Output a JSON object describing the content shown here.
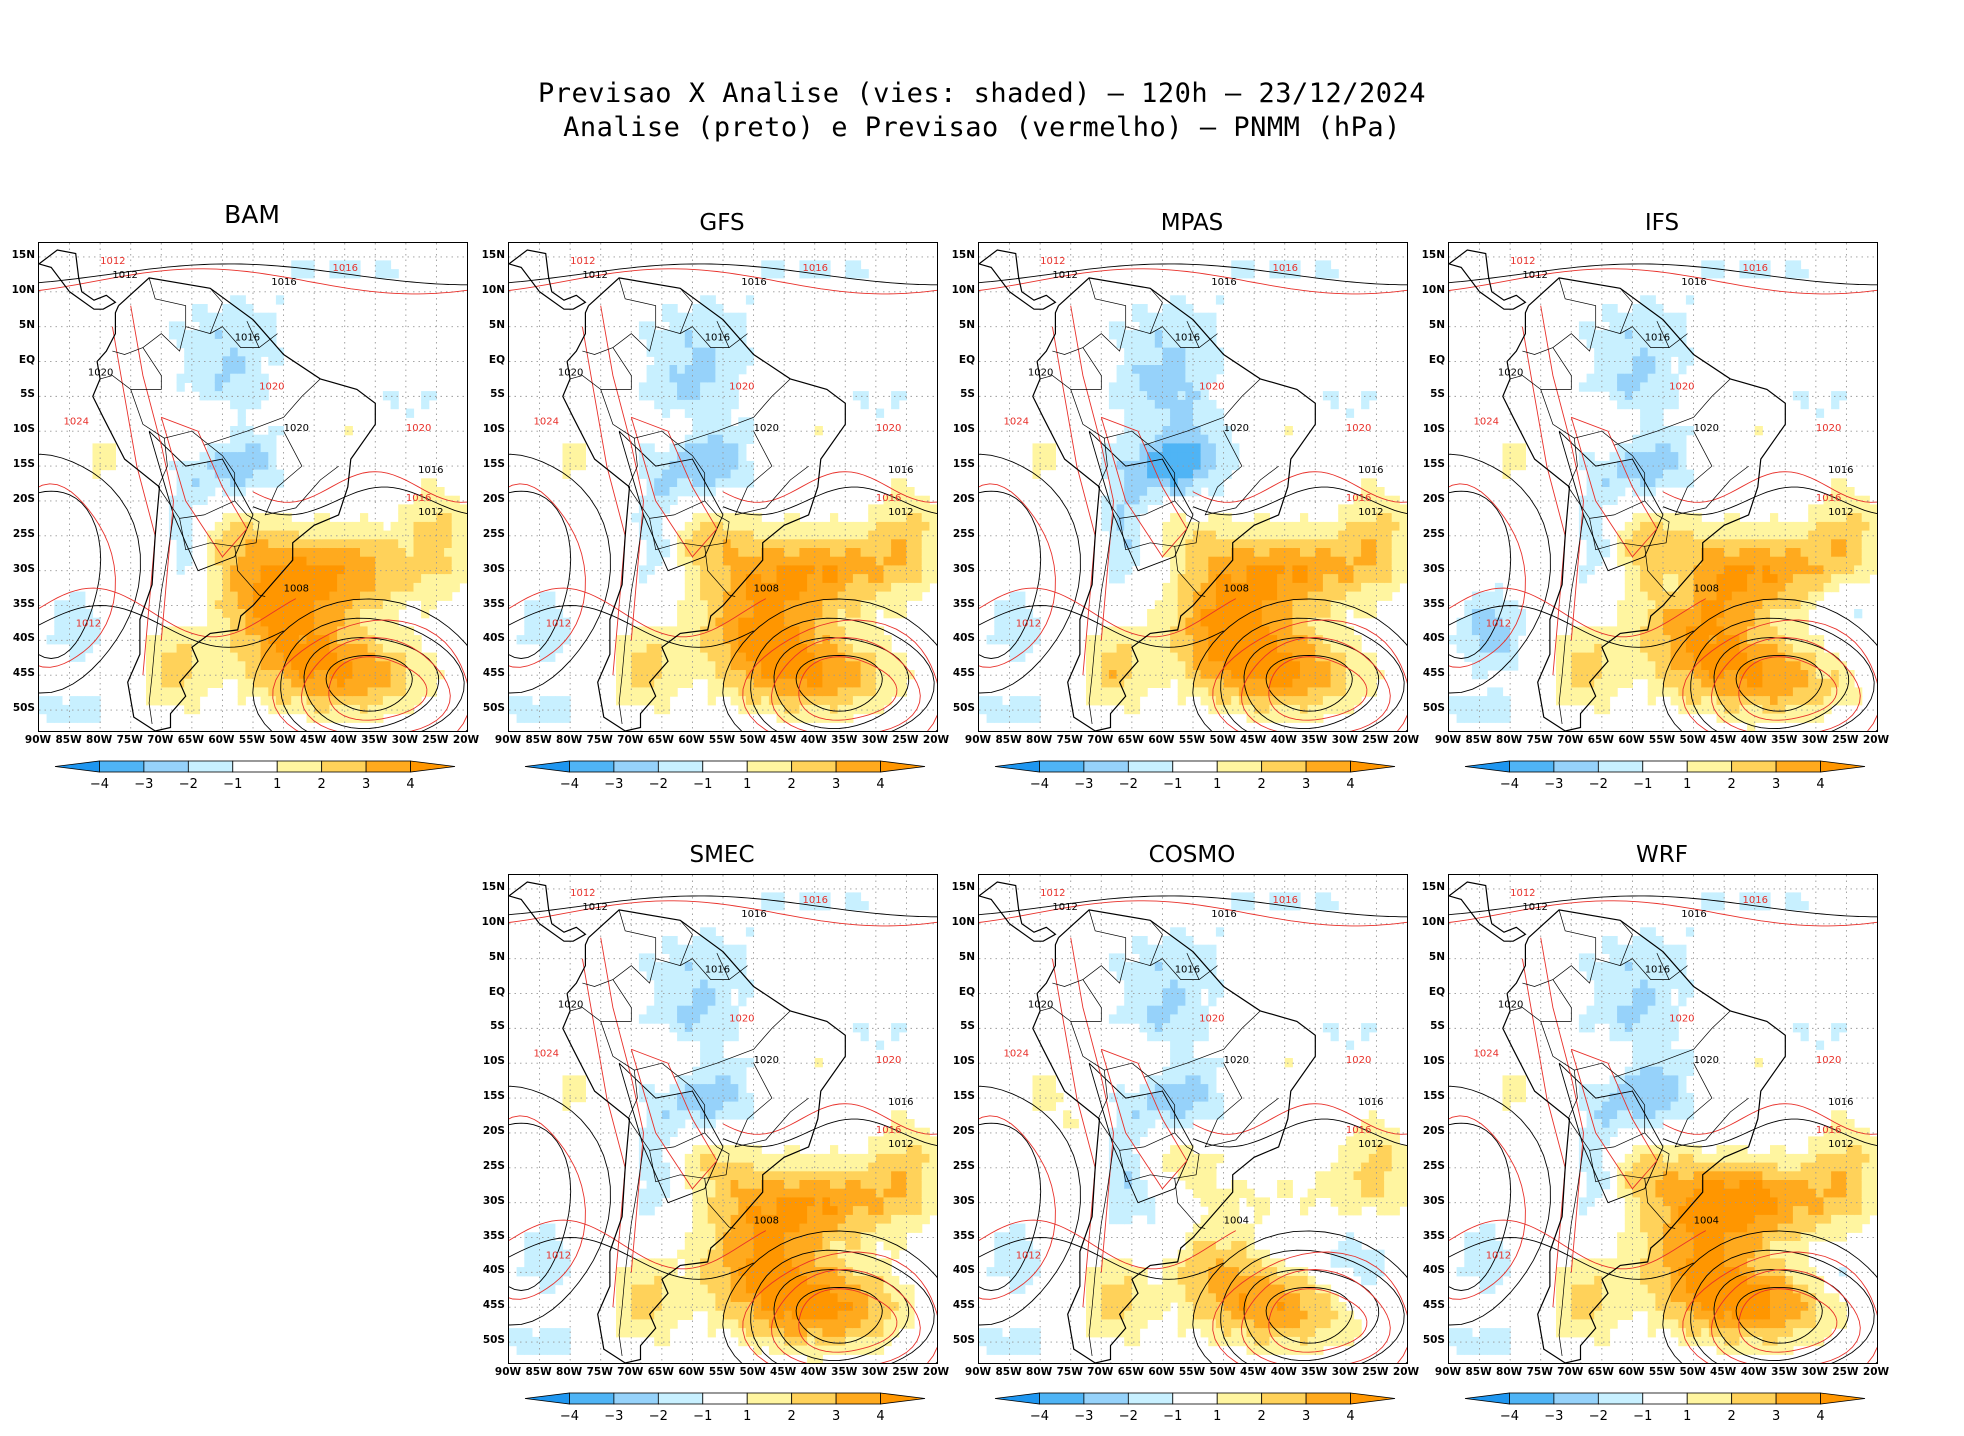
{
  "title_line1": "Previsao X Analise (vies: shaded) — 120h — 23/12/2024",
  "title_line2": "Analise (preto) e Previsao (vermelho) — PNMM (hPa)",
  "lat_labels": [
    "15N",
    "10N",
    "5N",
    "EQ",
    "5S",
    "10S",
    "15S",
    "20S",
    "25S",
    "30S",
    "35S",
    "40S",
    "45S",
    "50S"
  ],
  "lon_labels": [
    "90W",
    "85W",
    "80W",
    "75W",
    "70W",
    "65W",
    "60W",
    "55W",
    "50W",
    "45W",
    "40W",
    "35W",
    "30W",
    "25W",
    "20W"
  ],
  "colorbar": {
    "labels": [
      "−4",
      "−3",
      "−2",
      "−1",
      "1",
      "2",
      "3",
      "4"
    ],
    "colors": [
      "#1e96f0",
      "#4fb4f5",
      "#96d2fa",
      "#c8f0ff",
      "#ffffff",
      "#fff5a0",
      "#ffd25a",
      "#ffaa1e",
      "#ff9600"
    ]
  },
  "colors": {
    "analysis": "#000000",
    "forecast": "#e8302a",
    "coast": "#000000",
    "grid": "#999999"
  },
  "panels": [
    {
      "id": "bam",
      "name": "BAM",
      "labels_black": [
        "1012",
        "1016",
        "1016",
        "1020",
        "1020",
        "1016",
        "1012",
        "1008"
      ],
      "labels_red": [
        "1012",
        "1016",
        "1020",
        "1024",
        "1020",
        "1016",
        "1012"
      ]
    },
    {
      "id": "gfs",
      "name": "GFS",
      "labels_black": [
        "1012",
        "1016",
        "1016",
        "1020",
        "1020",
        "1016",
        "1012",
        "1008"
      ],
      "labels_red": [
        "1012",
        "1016",
        "1020",
        "1024",
        "1020",
        "1016",
        "1012"
      ]
    },
    {
      "id": "mpas",
      "name": "MPAS",
      "labels_black": [
        "1012",
        "1016",
        "1016",
        "1020",
        "1020",
        "1016",
        "1012",
        "1008"
      ],
      "labels_red": [
        "1012",
        "1016",
        "1020",
        "1024",
        "1020",
        "1016",
        "1012"
      ]
    },
    {
      "id": "ifs",
      "name": "IFS",
      "labels_black": [
        "1012",
        "1016",
        "1016",
        "1020",
        "1020",
        "1016",
        "1012",
        "1008"
      ],
      "labels_red": [
        "1012",
        "1016",
        "1020",
        "1024",
        "1020",
        "1016",
        "1012"
      ]
    },
    {
      "id": "smec",
      "name": "SMEC",
      "labels_black": [
        "1012",
        "1016",
        "1016",
        "1020",
        "1020",
        "1016",
        "1012",
        "1008"
      ],
      "labels_red": [
        "1012",
        "1016",
        "1020",
        "1024",
        "1020",
        "1016",
        "1012"
      ]
    },
    {
      "id": "cosmo",
      "name": "COSMO",
      "labels_black": [
        "1012",
        "1016",
        "1016",
        "1020",
        "1020",
        "1016",
        "1012",
        "1004"
      ],
      "labels_red": [
        "1012",
        "1016",
        "1020",
        "1024",
        "1020",
        "1016",
        "1012"
      ]
    },
    {
      "id": "wrf",
      "name": "WRF",
      "labels_black": [
        "1012",
        "1016",
        "1016",
        "1020",
        "1020",
        "1016",
        "1012",
        "1004"
      ],
      "labels_red": [
        "1012",
        "1016",
        "1020",
        "1024",
        "1020",
        "1016",
        "1012"
      ]
    }
  ]
}
